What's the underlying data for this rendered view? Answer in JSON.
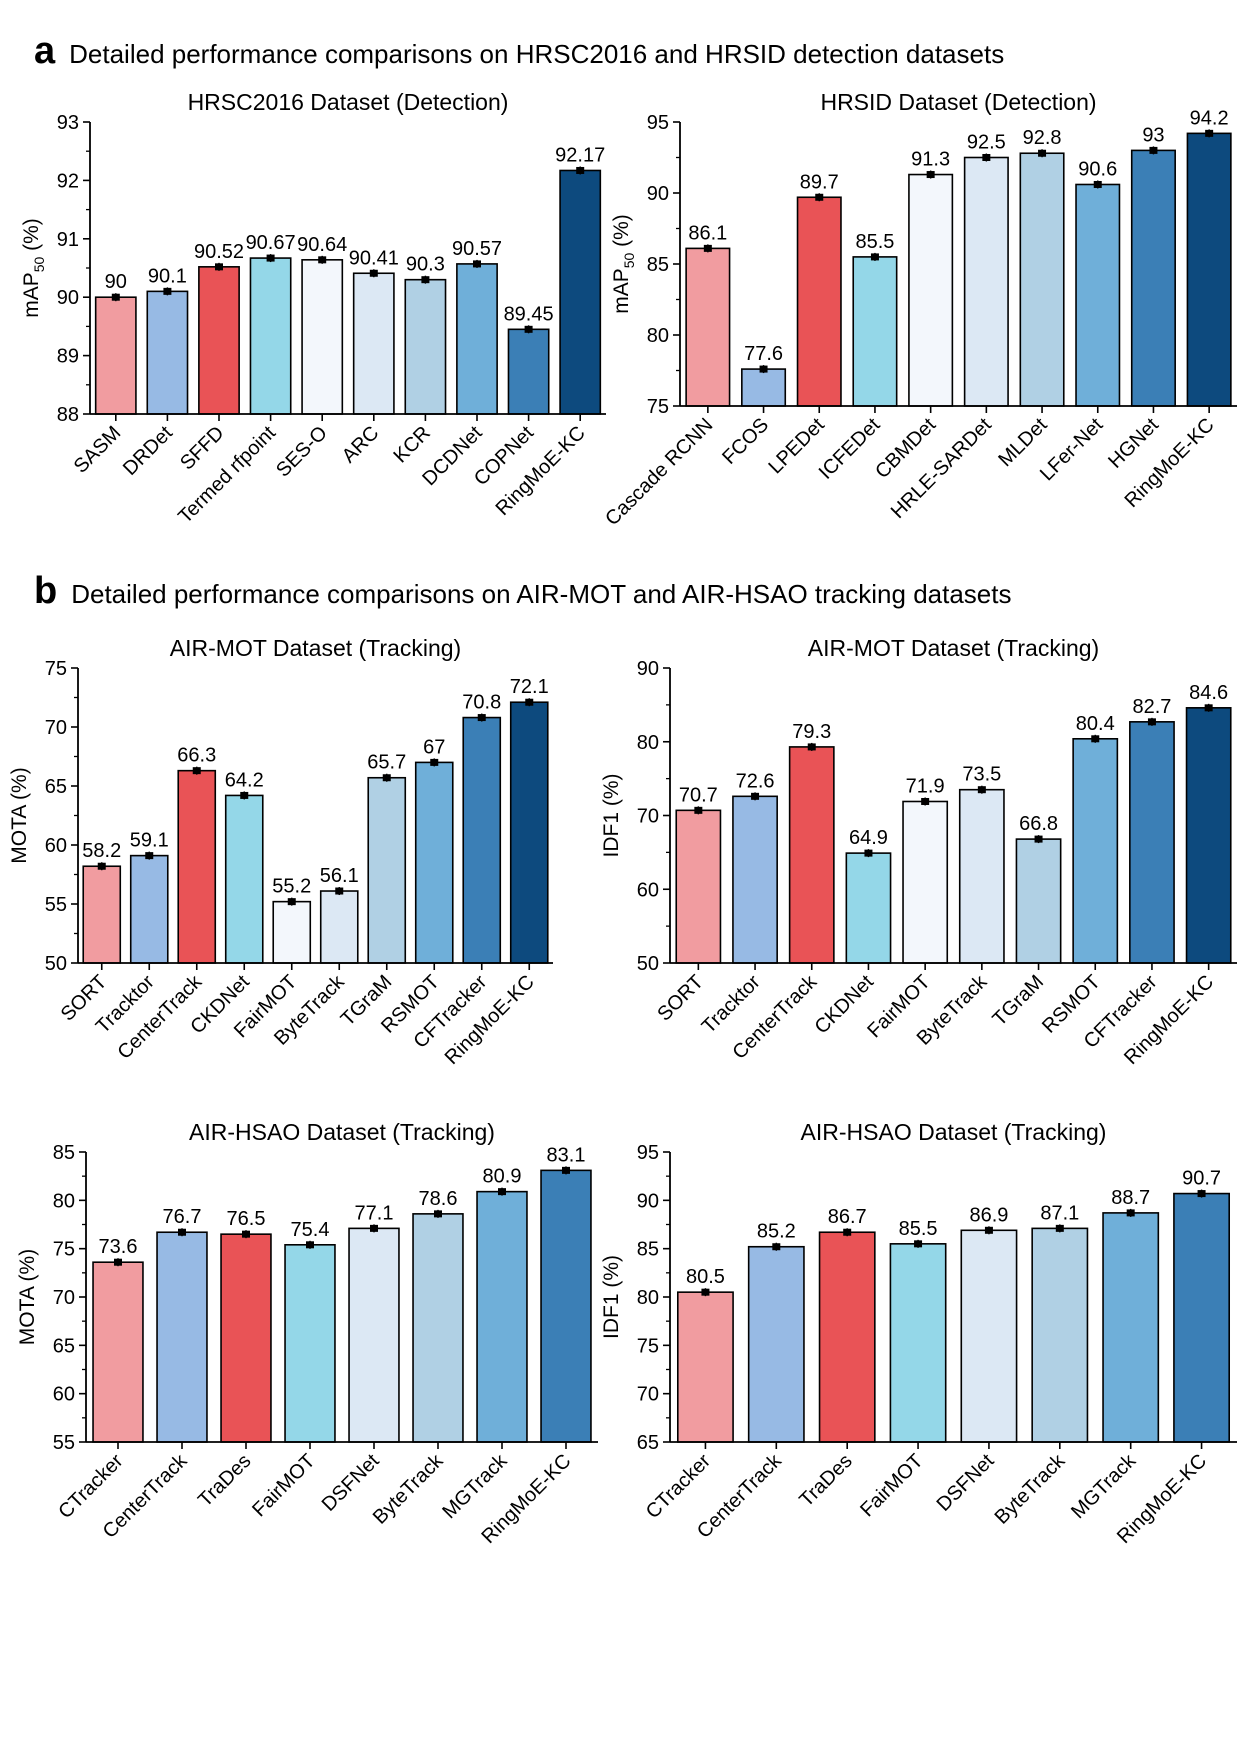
{
  "sections": {
    "a": {
      "letter": "a",
      "title": "Detailed performance comparisons on HRSC2016 and HRSID detection datasets"
    },
    "b": {
      "letter": "b",
      "title": "Detailed performance comparisons on AIR-MOT and AIR-HSAO tracking datasets"
    }
  },
  "chart_data": [
    {
      "id": "hrsc",
      "type": "bar",
      "title": "HRSC2016 Dataset (Detection)",
      "ylabel": "mAP",
      "ylabel_sub": "50",
      "ylabel_unit": " (%)",
      "ylim": [
        88,
        93
      ],
      "yticks": [
        88,
        89,
        90,
        91,
        92,
        93
      ],
      "ytick_labels": [
        "88",
        "89",
        "90",
        "91",
        "92",
        "93"
      ],
      "categories": [
        "SASM",
        "DRDet",
        "SFFD",
        "Termed rfpoint",
        "SES-O",
        "ARC",
        "KCR",
        "DCDNet",
        "COPNet",
        "RingMoE-KC"
      ],
      "values": [
        90,
        90.1,
        90.52,
        90.67,
        90.64,
        90.41,
        90.3,
        90.57,
        89.45,
        92.17
      ],
      "value_labels": [
        "90",
        "90.1",
        "90.52",
        "90.67",
        "90.64",
        "90.41",
        "90.3",
        "90.57",
        "89.45",
        "92.17"
      ],
      "colors": [
        "#F19CA0",
        "#97BAE4",
        "#E95356",
        "#94D7E8",
        "#F3F7FC",
        "#DCE8F4",
        "#B0D0E4",
        "#6FAFD9",
        "#3B7FB6",
        "#0D4A7E"
      ],
      "error_bars": true
    },
    {
      "id": "hrsid",
      "type": "bar",
      "title": "HRSID Dataset (Detection)",
      "ylabel": "mAP",
      "ylabel_sub": "50",
      "ylabel_unit": " (%)",
      "ylim": [
        75,
        95
      ],
      "yticks": [
        75,
        80,
        85,
        90,
        95
      ],
      "ytick_labels": [
        "75",
        "80",
        "85",
        "90",
        "95"
      ],
      "categories": [
        "Cascade RCNN",
        "FCOS",
        "LPEDet",
        "ICFEDet",
        "CBMDet",
        "HRLE-SARDet",
        "MLDet",
        "LFer-Net",
        "HGNet",
        "RingMoE-KC"
      ],
      "values": [
        86.1,
        77.6,
        89.7,
        85.5,
        91.3,
        92.5,
        92.8,
        90.6,
        93,
        94.2
      ],
      "value_labels": [
        "86.1",
        "77.6",
        "89.7",
        "85.5",
        "91.3",
        "92.5",
        "92.8",
        "90.6",
        "93",
        "94.2"
      ],
      "colors": [
        "#F19CA0",
        "#97BAE4",
        "#E95356",
        "#94D7E8",
        "#F3F7FC",
        "#DCE8F4",
        "#B0D0E4",
        "#6FAFD9",
        "#3B7FB6",
        "#0D4A7E"
      ],
      "error_bars": true
    },
    {
      "id": "airmot-mota",
      "type": "bar",
      "title": "AIR-MOT Dataset (Tracking)",
      "ylabel": "MOTA",
      "ylabel_sub": "",
      "ylabel_unit": " (%)",
      "ylim": [
        50,
        75
      ],
      "yticks": [
        50,
        55,
        60,
        65,
        70,
        75
      ],
      "ytick_labels": [
        "50",
        "55",
        "60",
        "65",
        "70",
        "75"
      ],
      "categories": [
        "SORT",
        "Tracktor",
        "CenterTrack",
        "CKDNet",
        "FairMOT",
        "ByteTrack",
        "TGraM",
        "RSMOT",
        "CFTracker",
        "RingMoE-KC"
      ],
      "values": [
        58.2,
        59.1,
        66.3,
        64.2,
        55.2,
        56.1,
        65.7,
        67,
        70.8,
        72.1
      ],
      "value_labels": [
        "58.2",
        "59.1",
        "66.3",
        "64.2",
        "55.2",
        "56.1",
        "65.7",
        "67",
        "70.8",
        "72.1"
      ],
      "colors": [
        "#F19CA0",
        "#97BAE4",
        "#E95356",
        "#94D7E8",
        "#F3F7FC",
        "#DCE8F4",
        "#B0D0E4",
        "#6FAFD9",
        "#3B7FB6",
        "#0D4A7E"
      ],
      "error_bars": true
    },
    {
      "id": "airmot-idf1",
      "type": "bar",
      "title": "AIR-MOT Dataset (Tracking)",
      "ylabel": "IDF1",
      "ylabel_sub": "",
      "ylabel_unit": " (%)",
      "ylim": [
        50,
        90
      ],
      "yticks": [
        50,
        60,
        70,
        80,
        90
      ],
      "ytick_labels": [
        "50",
        "60",
        "70",
        "80",
        "90"
      ],
      "categories": [
        "SORT",
        "Tracktor",
        "CenterTrack",
        "CKDNet",
        "FairMOT",
        "ByteTrack",
        "TGraM",
        "RSMOT",
        "CFTracker",
        "RingMoE-KC"
      ],
      "values": [
        70.7,
        72.6,
        79.3,
        64.9,
        71.9,
        73.5,
        66.8,
        80.4,
        82.7,
        84.6
      ],
      "value_labels": [
        "70.7",
        "72.6",
        "79.3",
        "64.9",
        "71.9",
        "73.5",
        "66.8",
        "80.4",
        "82.7",
        "84.6"
      ],
      "colors": [
        "#F19CA0",
        "#97BAE4",
        "#E95356",
        "#94D7E8",
        "#F3F7FC",
        "#DCE8F4",
        "#B0D0E4",
        "#6FAFD9",
        "#3B7FB6",
        "#0D4A7E"
      ],
      "error_bars": true
    },
    {
      "id": "airhsao-mota",
      "type": "bar",
      "title": "AIR-HSAO Dataset (Tracking)",
      "ylabel": "MOTA",
      "ylabel_sub": "",
      "ylabel_unit": " (%)",
      "ylim": [
        55,
        85
      ],
      "yticks": [
        55,
        60,
        65,
        70,
        75,
        80,
        85
      ],
      "ytick_labels": [
        "55",
        "60",
        "65",
        "70",
        "75",
        "80",
        "85"
      ],
      "categories": [
        "CTracker",
        "CenterTrack",
        "TraDes",
        "FairMOT",
        "DSFNet",
        "ByteTrack",
        "MGTrack",
        "RingMoE-KC"
      ],
      "values": [
        73.6,
        76.7,
        76.5,
        75.4,
        77.1,
        78.6,
        80.9,
        83.1
      ],
      "value_labels": [
        "73.6",
        "76.7",
        "76.5",
        "75.4",
        "77.1",
        "78.6",
        "80.9",
        "83.1"
      ],
      "colors": [
        "#F19CA0",
        "#97BAE4",
        "#E95356",
        "#94D7E8",
        "#DCE8F4",
        "#B0D0E4",
        "#6FAFD9",
        "#3B7FB6"
      ],
      "error_bars": true
    },
    {
      "id": "airhsao-idf1",
      "type": "bar",
      "title": "AIR-HSAO Dataset (Tracking)",
      "ylabel": "IDF1",
      "ylabel_sub": "",
      "ylabel_unit": " (%)",
      "ylim": [
        65,
        95
      ],
      "yticks": [
        65,
        70,
        75,
        80,
        85,
        90,
        95
      ],
      "ytick_labels": [
        "65",
        "70",
        "75",
        "80",
        "85",
        "90",
        "95"
      ],
      "categories": [
        "CTracker",
        "CenterTrack",
        "TraDes",
        "FairMOT",
        "DSFNet",
        "ByteTrack",
        "MGTrack",
        "RingMoE-KC"
      ],
      "values": [
        80.5,
        85.2,
        86.7,
        85.5,
        86.9,
        87.1,
        88.7,
        90.7
      ],
      "value_labels": [
        "80.5",
        "85.2",
        "86.7",
        "85.5",
        "86.9",
        "87.1",
        "88.7",
        "90.7"
      ],
      "colors": [
        "#F19CA0",
        "#97BAE4",
        "#E95356",
        "#94D7E8",
        "#DCE8F4",
        "#B0D0E4",
        "#6FAFD9",
        "#3B7FB6"
      ],
      "error_bars": true
    }
  ]
}
